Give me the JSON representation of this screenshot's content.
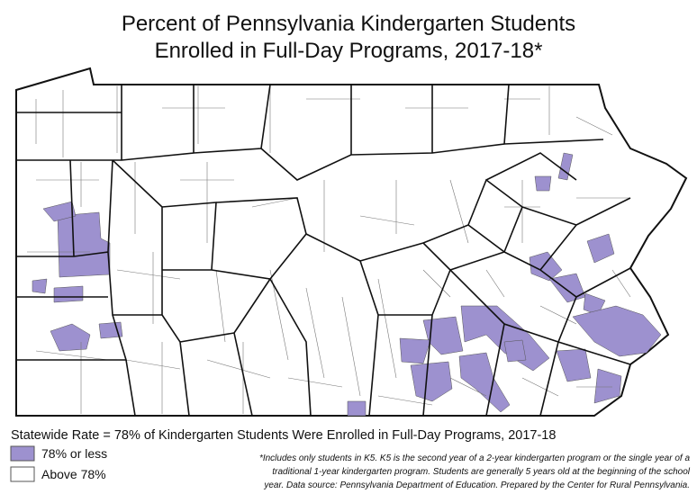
{
  "title": [
    "Percent of Pennsylvania Kindergarten Students",
    "Enrolled in Full-Day Programs, 2017-18*"
  ],
  "statewide_rate": "Statewide Rate = 78% of Kindergarten Students Were Enrolled in Full-Day Programs, 2017-18",
  "legend": [
    {
      "label": "78% or less",
      "color": "#9d91cf"
    },
    {
      "label": "Above 78%",
      "color": "#ffffff"
    }
  ],
  "footnote": [
    "*Includes only students in K5. K5 is the second year of a 2-year kindergarten program or the single year of a",
    "traditional 1-year kindergarten program. Students are generally 5 years old at the beginning of the school",
    "year. Data source: Pennsylvania Department of Education. Prepared by the Center for Rural Pennsylvania."
  ]
}
